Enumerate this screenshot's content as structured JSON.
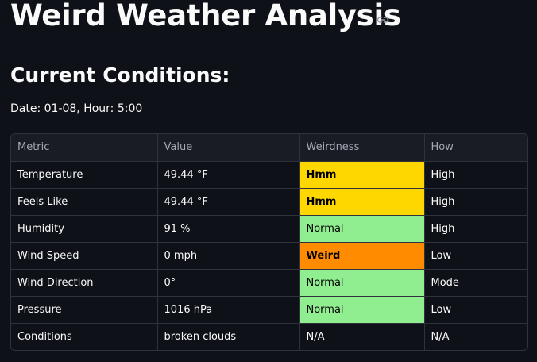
{
  "header": {
    "title": "Weird Weather Analysis",
    "subtitle": "Current Conditions:",
    "info": "Date: 01-08, Hour: 5:00"
  },
  "table": {
    "columns": [
      "Metric",
      "Value",
      "Weirdness",
      "How"
    ],
    "rows": [
      {
        "cells": [
          "Temperature",
          "49.44 °F",
          "Hmm",
          "High"
        ],
        "highlight": "#ffd700",
        "bold": true
      },
      {
        "cells": [
          "Feels Like",
          "49.44 °F",
          "Hmm",
          "High"
        ],
        "highlight": "#ffd700",
        "bold": true
      },
      {
        "cells": [
          "Humidity",
          "91 %",
          "Normal",
          "High"
        ],
        "highlight": "#90ee90",
        "bold": false
      },
      {
        "cells": [
          "Wind Speed",
          "0 mph",
          "Weird",
          "Low"
        ],
        "highlight": "#ff8c00",
        "bold": true
      },
      {
        "cells": [
          "Wind Direction",
          "0°",
          "Normal",
          "Mode"
        ],
        "highlight": "#90ee90",
        "bold": false
      },
      {
        "cells": [
          "Pressure",
          "1016 hPa",
          "Normal",
          "Low"
        ],
        "highlight": "#90ee90",
        "bold": false
      },
      {
        "cells": [
          "Conditions",
          "broken clouds",
          "N/A",
          "N/A"
        ]
      }
    ]
  }
}
